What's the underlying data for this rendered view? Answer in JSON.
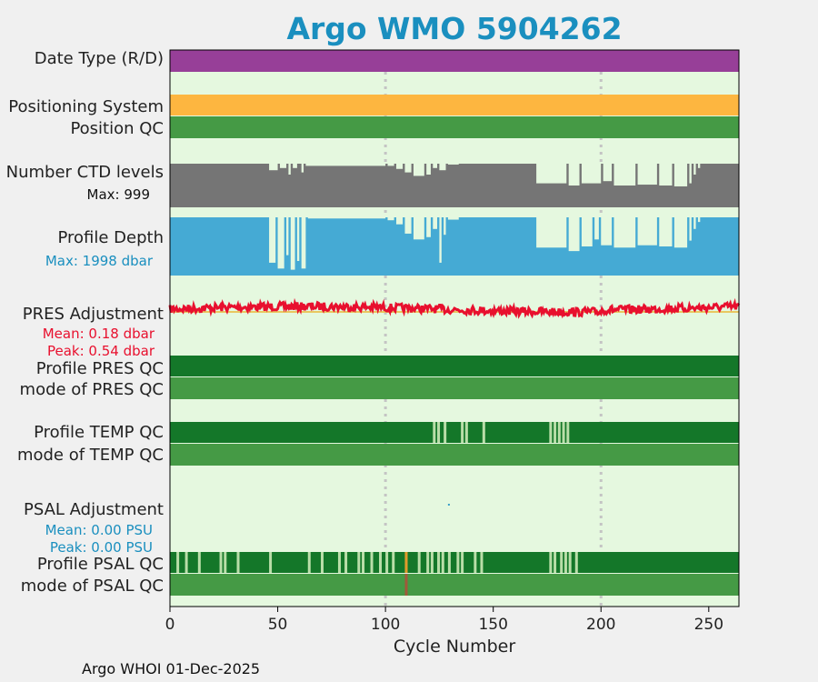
{
  "chart_data": {
    "type": "timeline",
    "title": "Argo WMO 5904262",
    "xlabel": "Cycle Number",
    "xlim": [
      0,
      264
    ],
    "xticks": [
      0,
      50,
      100,
      150,
      200,
      250
    ],
    "vertical_guides": [
      100,
      200
    ],
    "rows": [
      {
        "label": "Date Type (R/D)",
        "color": "#973f98"
      },
      {
        "label": "Positioning System",
        "color": "#fdb640"
      },
      {
        "label": "Position QC",
        "color": "#459a45"
      },
      {
        "label": "Number CTD levels",
        "sub": "Max: 999",
        "color": "#757575"
      },
      {
        "label": "Profile Depth",
        "sub": "Max: 1998 dbar",
        "color": "#45aad4"
      },
      {
        "label": "PRES Adjustment",
        "sub1": "Mean: 0.18 dbar",
        "sub2": "Peak: 0.54 dbar",
        "color": "#e8102e"
      },
      {
        "label": "Profile PRES QC",
        "color": "#147729"
      },
      {
        "label": "mode of PRES QC",
        "color": "#459a45"
      },
      {
        "label": "Profile TEMP QC",
        "color": "#147729"
      },
      {
        "label": "mode of TEMP QC",
        "color": "#459a45"
      },
      {
        "label": "PSAL Adjustment",
        "sub1": "Mean: 0.00 PSU",
        "sub2": "Peak: 0.00 PSU",
        "color": "#3a9fc8"
      },
      {
        "label": "Profile PSAL QC",
        "color": "#147729"
      },
      {
        "label": "mode of PSAL QC",
        "color": "#459a45"
      }
    ],
    "ctd_level_drops": [
      [
        46,
        50,
        0.15
      ],
      [
        51,
        54,
        0.1
      ],
      [
        55,
        56,
        0.25
      ],
      [
        57,
        59,
        0.1
      ],
      [
        61,
        62,
        0.2
      ],
      [
        63,
        100,
        0.05
      ],
      [
        101,
        104,
        0.05
      ],
      [
        105,
        108,
        0.12
      ],
      [
        109,
        112,
        0.2
      ],
      [
        113,
        118,
        0.28
      ],
      [
        119,
        121,
        0.25
      ],
      [
        122,
        124,
        0.1
      ],
      [
        125,
        128,
        0.15
      ],
      [
        129,
        134,
        0.02
      ],
      [
        134,
        175,
        0
      ],
      [
        170,
        184,
        0.45
      ],
      [
        185,
        190,
        0.5
      ],
      [
        191,
        200,
        0.45
      ],
      [
        201,
        205,
        0.4
      ],
      [
        206,
        216,
        0.5
      ],
      [
        217,
        226,
        0.48
      ],
      [
        227,
        233,
        0.5
      ],
      [
        234,
        240,
        0.52
      ],
      [
        241,
        242,
        0.45
      ],
      [
        243,
        244,
        0.25
      ],
      [
        245,
        246,
        0.1
      ]
    ],
    "profile_depth_drops": [
      [
        46,
        49,
        0.78
      ],
      [
        50,
        53,
        0.88
      ],
      [
        54,
        55,
        0.65
      ],
      [
        56,
        58,
        0.9
      ],
      [
        59,
        60,
        0.75
      ],
      [
        61,
        63,
        0.88
      ],
      [
        64,
        100,
        0.02
      ],
      [
        101,
        104,
        0.05
      ],
      [
        105,
        108,
        0.12
      ],
      [
        109,
        112,
        0.28
      ],
      [
        113,
        118,
        0.38
      ],
      [
        119,
        121,
        0.34
      ],
      [
        122,
        124,
        0.2
      ],
      [
        125,
        126,
        0.78
      ],
      [
        127,
        128,
        0.3
      ],
      [
        129,
        134,
        0.04
      ],
      [
        135,
        170,
        0
      ],
      [
        170,
        184,
        0.52
      ],
      [
        185,
        190,
        0.58
      ],
      [
        191,
        196,
        0.5
      ],
      [
        197,
        199,
        0.38
      ],
      [
        200,
        205,
        0.48
      ],
      [
        206,
        216,
        0.52
      ],
      [
        217,
        226,
        0.48
      ],
      [
        227,
        233,
        0.5
      ],
      [
        234,
        240,
        0.52
      ],
      [
        241,
        242,
        0.4
      ],
      [
        243,
        244,
        0.2
      ],
      [
        245,
        246,
        0.08
      ]
    ],
    "pres_adjustment": {
      "mean": 0.18,
      "peak": 0.54
    },
    "psal_adjustment": {
      "mean": 0.0,
      "peak": 0.0
    },
    "temp_qc_flag_cycles": [
      122,
      124,
      127,
      135,
      137,
      145,
      176,
      178,
      180,
      182,
      184
    ],
    "psal_qc_flag_cycles": [
      3,
      7,
      13,
      23,
      25,
      31,
      46,
      64,
      70,
      78,
      81,
      87,
      89,
      93,
      97,
      100,
      103,
      109,
      115,
      119,
      121,
      124,
      126,
      129,
      133,
      135,
      141,
      144,
      176,
      178,
      181,
      183,
      185,
      188
    ],
    "psal_qc_bad_cycle": 109
  },
  "footer": "Argo WHOI 01-Dec-2025"
}
